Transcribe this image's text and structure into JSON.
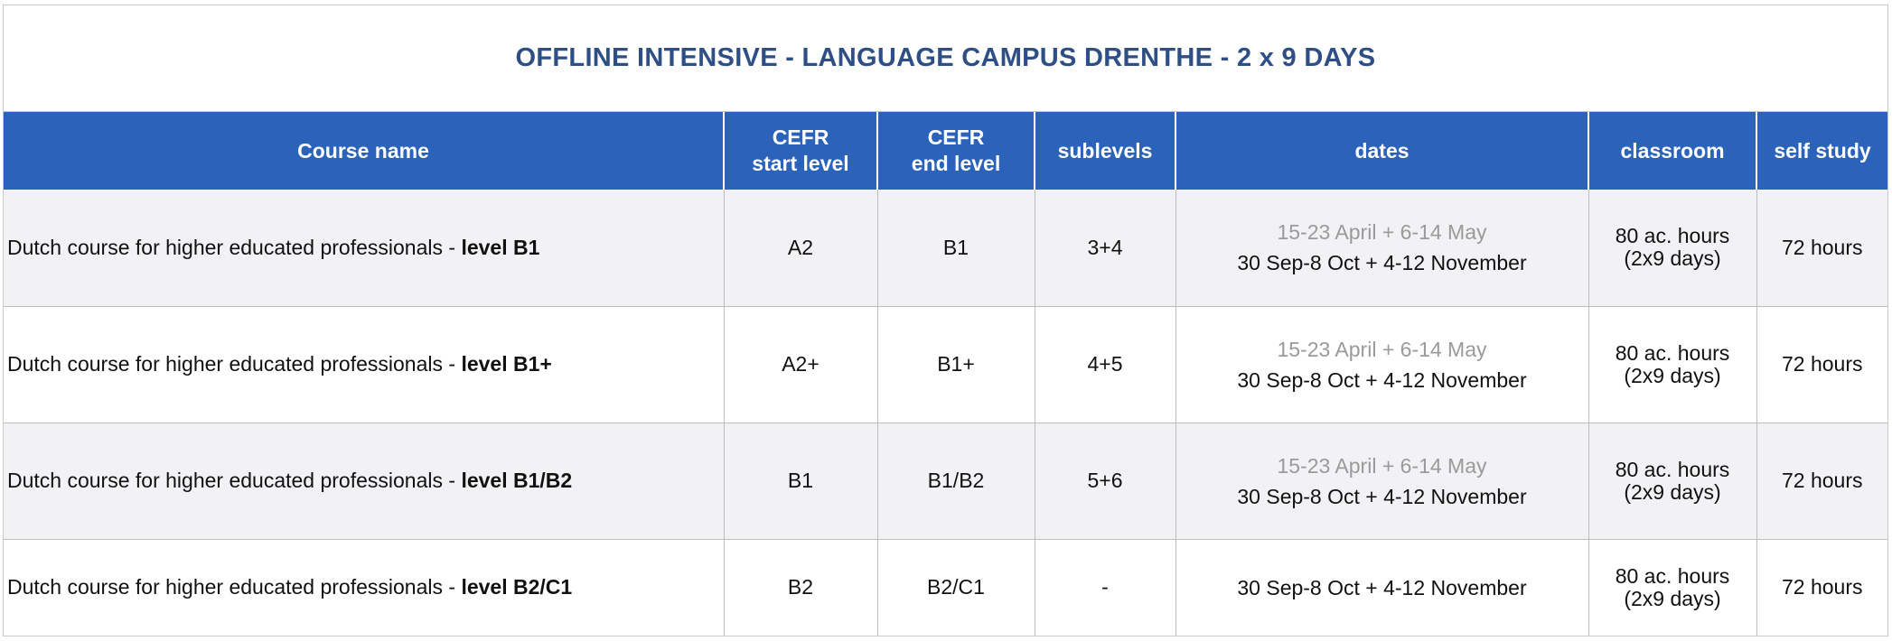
{
  "title": "OFFLINE INTENSIVE - LANGUAGE CAMPUS DRENTHE - 2 x 9 DAYS",
  "headers": {
    "course": "Course name",
    "start_1": "CEFR",
    "start_2": "start level",
    "end_1": "CEFR",
    "end_2": "end level",
    "sublevels": "sublevels",
    "dates": "dates",
    "classroom": "classroom",
    "self_study": "self study"
  },
  "rows": [
    {
      "name_prefix": "Dutch course for higher educated professionals - ",
      "name_level": "level B1",
      "start": "A2",
      "end": "B1",
      "sublevels": "3+4",
      "date_gray": "15-23 April + 6-14 May",
      "date_main": "30 Sep-8 Oct + 4-12 November",
      "class_1": "80 ac. hours",
      "class_2": "(2x9 days)",
      "self_study": "72 hours"
    },
    {
      "name_prefix": "Dutch course for higher educated professionals - ",
      "name_level": "level B1+",
      "start": "A2+",
      "end": "B1+",
      "sublevels": "4+5",
      "date_gray": "15-23 April + 6-14 May",
      "date_main": "30 Sep-8 Oct + 4-12 November",
      "class_1": "80 ac. hours",
      "class_2": "(2x9 days)",
      "self_study": "72 hours"
    },
    {
      "name_prefix": "Dutch course for higher educated professionals - ",
      "name_level": "level B1/B2",
      "start": "B1",
      "end": "B1/B2",
      "sublevels": "5+6",
      "date_gray": "15-23 April + 6-14 May",
      "date_main": "30 Sep-8 Oct + 4-12 November",
      "class_1": "80 ac. hours",
      "class_2": "(2x9 days)",
      "self_study": "72 hours"
    },
    {
      "name_prefix": "Dutch course for higher educated professionals - ",
      "name_level": "level B2/C1",
      "start": "B2",
      "end": "B2/C1",
      "sublevels": "-",
      "date_gray": "",
      "date_main": "30 Sep-8 Oct + 4-12 November",
      "class_1": "80 ac. hours",
      "class_2": "(2x9 days)",
      "self_study": "72 hours"
    }
  ]
}
